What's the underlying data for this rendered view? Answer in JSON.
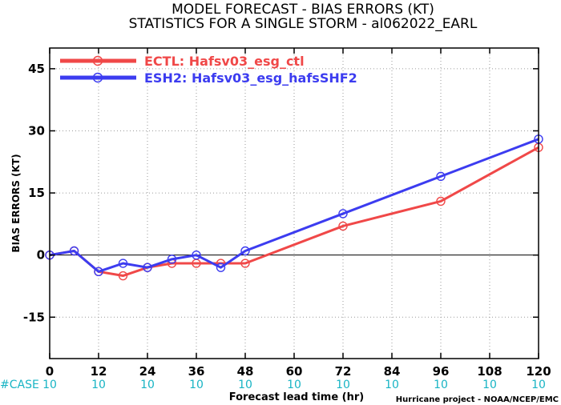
{
  "chart_data": {
    "type": "line",
    "title": "MODEL FORECAST - BIAS ERRORS (KT)",
    "subtitle": "STATISTICS FOR A SINGLE STORM - al062022_EARL",
    "xlabel": "Forecast lead time (hr)",
    "ylabel": "BIAS ERRORS (KT)",
    "xlim": [
      0,
      120
    ],
    "ylim": [
      -25,
      50
    ],
    "x_ticks": [
      "0",
      "12",
      "24",
      "36",
      "48",
      "60",
      "72",
      "84",
      "96",
      "108",
      "120"
    ],
    "y_ticks": [
      "45",
      "30",
      "15",
      "0",
      "-15"
    ],
    "grid": true,
    "legend_position": "top-left",
    "case_label": "#CASE",
    "case_counts": [
      "10",
      "10",
      "10",
      "10",
      "10",
      "10",
      "10",
      "10",
      "10",
      "10",
      "10"
    ],
    "credit": "Hurricane project - NOAA/NCEP/EMC",
    "series": [
      {
        "name": "ECTL: Hafsv03_esg_ctl",
        "color": "#f04848",
        "x": [
          0,
          6,
          12,
          18,
          24,
          30,
          36,
          42,
          48,
          72,
          96,
          120
        ],
        "y": [
          0,
          1,
          -4,
          -5,
          -3,
          -2,
          -2,
          -2,
          -2,
          7,
          13,
          26
        ]
      },
      {
        "name": "ESH2: Hafsv03_esg_hafsSHF2",
        "color": "#3c3cf0",
        "x": [
          0,
          6,
          12,
          18,
          24,
          30,
          36,
          42,
          48,
          72,
          96,
          120
        ],
        "y": [
          0,
          1,
          -4,
          -2,
          -3,
          -1,
          0,
          -3,
          1,
          10,
          19,
          28
        ]
      }
    ]
  }
}
